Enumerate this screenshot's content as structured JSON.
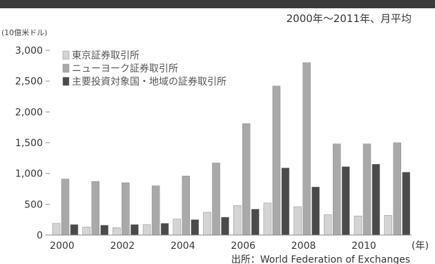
{
  "header": {
    "subtitle": "2000年〜2011年、月平均"
  },
  "chart_data": {
    "type": "bar",
    "ylabel": "(10億米ドル)",
    "xlabel": "(年)",
    "ylim": [
      0,
      3000
    ],
    "yticks": [
      0,
      500,
      1000,
      1500,
      2000,
      2500,
      3000
    ],
    "ytick_labels": [
      "0",
      "500",
      "1,000",
      "1,500",
      "2,000",
      "2,500",
      "3,000"
    ],
    "categories": [
      "2000",
      "2001",
      "2002",
      "2003",
      "2004",
      "2005",
      "2006",
      "2007",
      "2008",
      "2009",
      "2010",
      "2011"
    ],
    "xtick_labels": [
      "2000",
      "",
      "2002",
      "",
      "2004",
      "",
      "2006",
      "",
      "2008",
      "",
      "2010",
      ""
    ],
    "series": [
      {
        "name": "東京証券取引所",
        "color": "#d4d4d4",
        "values": [
          190,
          130,
          120,
          170,
          260,
          370,
          480,
          520,
          460,
          330,
          310,
          320
        ]
      },
      {
        "name": "ニューヨーク証券取引所",
        "color": "#a9a9a9",
        "values": [
          910,
          870,
          850,
          800,
          960,
          1170,
          1810,
          2420,
          2800,
          1480,
          1480,
          1500
        ]
      },
      {
        "name": "主要投資対象国・地域の証券取引所",
        "color": "#4a4a4a",
        "values": [
          170,
          160,
          170,
          190,
          250,
          290,
          420,
          1090,
          780,
          1110,
          1150,
          1020
        ]
      }
    ],
    "legend_position": "top-left",
    "grid": false,
    "source": "出所：World Federation of Exchanges"
  }
}
